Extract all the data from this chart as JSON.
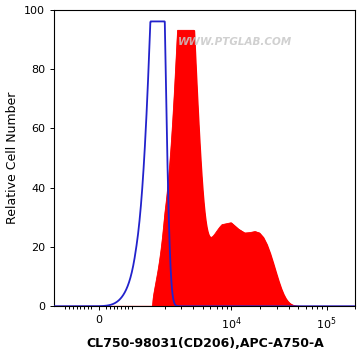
{
  "title": "",
  "xlabel": "CL750-98031(CD206),APC-A750-A",
  "ylabel": "Relative Cell Number",
  "ylim": [
    0,
    100
  ],
  "yticks": [
    0,
    20,
    40,
    60,
    80,
    100
  ],
  "xlim_left": -1200,
  "xlim_right": 200000,
  "background_color": "#ffffff",
  "plot_bg_color": "#ffffff",
  "blue_line_color": "#2222cc",
  "red_fill_color": "#ff0000",
  "watermark": "WWW.PTGLAB.COM",
  "watermark_color": "#c8c8c8",
  "xlabel_fontsize": 9,
  "ylabel_fontsize": 9,
  "tick_fontsize": 8,
  "linthresh": 1000,
  "linscale": 0.35
}
